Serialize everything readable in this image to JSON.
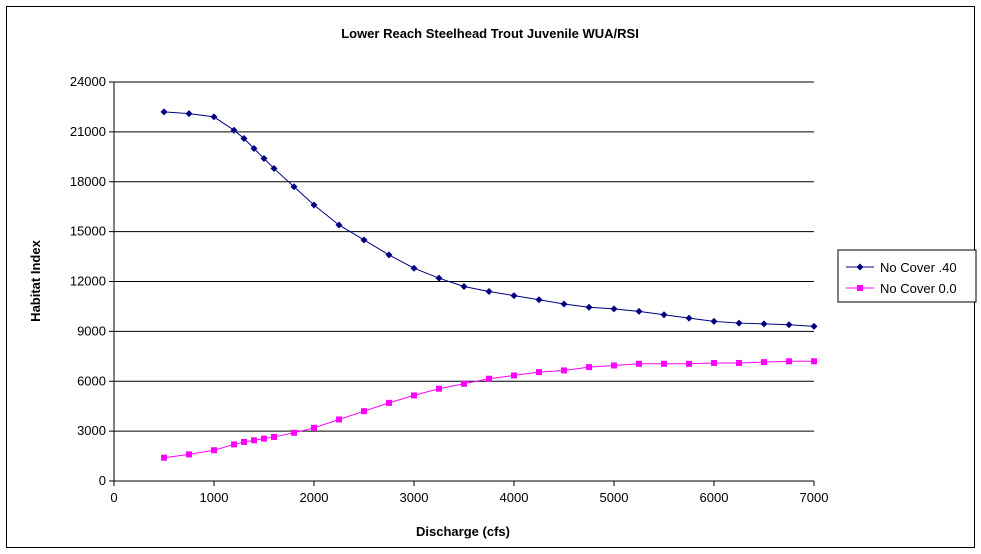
{
  "chart_data": {
    "type": "line",
    "title": "Lower Reach Steelhead Trout Juvenile WUA/RSI",
    "xlabel": "Discharge (cfs)",
    "ylabel": "Habitat Index",
    "xlim": [
      0,
      7000
    ],
    "ylim": [
      0,
      24000
    ],
    "xticks": [
      0,
      1000,
      2000,
      3000,
      4000,
      5000,
      6000,
      7000
    ],
    "yticks": [
      0,
      3000,
      6000,
      9000,
      12000,
      15000,
      18000,
      21000,
      24000
    ],
    "grid": "horizontal",
    "legend": "right",
    "series": [
      {
        "name": "No Cover .40",
        "color": "#000080",
        "marker": "diamond",
        "x": [
          500,
          750,
          1000,
          1200,
          1300,
          1400,
          1500,
          1600,
          1800,
          2000,
          2250,
          2500,
          2750,
          3000,
          3250,
          3500,
          3750,
          4000,
          4250,
          4500,
          4750,
          5000,
          5250,
          5500,
          5750,
          6000,
          6250,
          6500,
          6750,
          7000
        ],
        "y": [
          22200,
          22100,
          21900,
          21100,
          20600,
          20000,
          19400,
          18800,
          17700,
          16600,
          15400,
          14500,
          13600,
          12800,
          12200,
          11700,
          11400,
          11150,
          10900,
          10650,
          10450,
          10350,
          10200,
          10000,
          9800,
          9600,
          9500,
          9450,
          9400,
          9300
        ]
      },
      {
        "name": "No Cover 0.0",
        "color": "#ff00ff",
        "marker": "square",
        "x": [
          500,
          750,
          1000,
          1200,
          1300,
          1400,
          1500,
          1600,
          1800,
          2000,
          2250,
          2500,
          2750,
          3000,
          3250,
          3500,
          3750,
          4000,
          4250,
          4500,
          4750,
          5000,
          5250,
          5500,
          5750,
          6000,
          6250,
          6500,
          6750,
          7000
        ],
        "y": [
          1400,
          1600,
          1850,
          2200,
          2350,
          2450,
          2550,
          2650,
          2900,
          3200,
          3700,
          4200,
          4700,
          5150,
          5550,
          5850,
          6150,
          6350,
          6550,
          6650,
          6850,
          6950,
          7050,
          7050,
          7050,
          7100,
          7100,
          7150,
          7200,
          7200
        ]
      }
    ]
  }
}
